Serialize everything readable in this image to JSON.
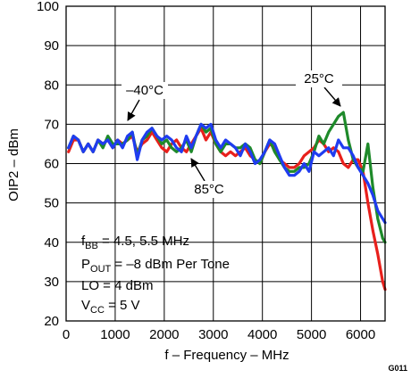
{
  "chart_data": {
    "type": "line",
    "xlabel": "f – Frequency – MHz",
    "ylabel": "OIP2 – dBm",
    "xlim": [
      0,
      6500
    ],
    "ylim": [
      20,
      100
    ],
    "xticks": [
      0,
      1000,
      2000,
      3000,
      4000,
      5000,
      6000
    ],
    "yticks": [
      20,
      30,
      40,
      50,
      60,
      70,
      80,
      90,
      100
    ],
    "grid": true,
    "figure_id": "G011",
    "annotations": [
      {
        "base": "f",
        "sub": "BB",
        "rest": " = 4.5, 5.5 MHz"
      },
      {
        "base": "P",
        "sub": "OUT",
        "rest": " = –8 dBm Per Tone"
      },
      {
        "base": "LO = 4 dBm",
        "sub": "",
        "rest": ""
      },
      {
        "base": "V",
        "sub": "CC",
        "rest": " = 5 V"
      }
    ],
    "series": [
      {
        "name": "–40°C",
        "color": "#e8201c",
        "x": [
          50,
          150,
          250,
          350,
          450,
          550,
          650,
          750,
          850,
          950,
          1050,
          1150,
          1250,
          1350,
          1450,
          1550,
          1650,
          1750,
          1850,
          1950,
          2050,
          2150,
          2250,
          2350,
          2450,
          2550,
          2650,
          2750,
          2850,
          2950,
          3050,
          3150,
          3250,
          3350,
          3450,
          3550,
          3650,
          3750,
          3850,
          3950,
          4050,
          4150,
          4250,
          4350,
          4450,
          4550,
          4650,
          4750,
          4850,
          4950,
          5050,
          5150,
          5250,
          5350,
          5450,
          5550,
          5650,
          5750,
          5850,
          5950,
          6050,
          6150,
          6250,
          6350,
          6450,
          6500
        ],
        "y": [
          63,
          66,
          66,
          63,
          65,
          63,
          66,
          65,
          66,
          64,
          66,
          65,
          66,
          67,
          63,
          65,
          66,
          68,
          66,
          64,
          63,
          65,
          66,
          64,
          63,
          65,
          67,
          69,
          66,
          68,
          65,
          63,
          62,
          63,
          62,
          63,
          64,
          62,
          61,
          60,
          63,
          65,
          64,
          61,
          60,
          59,
          59,
          60,
          62,
          63,
          64,
          66,
          65,
          63,
          64,
          63,
          60,
          59,
          61,
          61,
          58,
          50,
          43,
          37,
          30,
          28
        ]
      },
      {
        "name": "25°C",
        "color": "#1e8a2a",
        "x": [
          50,
          150,
          250,
          350,
          450,
          550,
          650,
          750,
          850,
          950,
          1050,
          1150,
          1250,
          1350,
          1450,
          1550,
          1650,
          1750,
          1850,
          1950,
          2050,
          2150,
          2250,
          2350,
          2450,
          2550,
          2650,
          2750,
          2850,
          2950,
          3050,
          3150,
          3250,
          3350,
          3450,
          3550,
          3650,
          3750,
          3850,
          3950,
          4050,
          4150,
          4250,
          4350,
          4450,
          4550,
          4650,
          4750,
          4850,
          4950,
          5050,
          5150,
          5250,
          5350,
          5450,
          5550,
          5650,
          5750,
          5850,
          5950,
          6050,
          6150,
          6250,
          6350,
          6450,
          6500
        ],
        "y": [
          64,
          67,
          66,
          63,
          65,
          63,
          66,
          64,
          67,
          65,
          65,
          65,
          66,
          68,
          62,
          66,
          67,
          69,
          67,
          65,
          66,
          64,
          63,
          64,
          66,
          63,
          67,
          70,
          68,
          69,
          65,
          63,
          65,
          65,
          64,
          64,
          65,
          64,
          61,
          60,
          63,
          66,
          63,
          61,
          59,
          58,
          58,
          59,
          59,
          60,
          63,
          67,
          65,
          68,
          70,
          72,
          73,
          66,
          61,
          59,
          58,
          65,
          54,
          46,
          41,
          40
        ]
      },
      {
        "name": "85°C",
        "color": "#1f3cf0",
        "x": [
          50,
          150,
          250,
          350,
          450,
          550,
          650,
          750,
          850,
          950,
          1050,
          1150,
          1250,
          1350,
          1450,
          1550,
          1650,
          1750,
          1850,
          1950,
          2050,
          2150,
          2250,
          2350,
          2450,
          2550,
          2650,
          2750,
          2850,
          2950,
          3050,
          3150,
          3250,
          3350,
          3450,
          3550,
          3650,
          3750,
          3850,
          3950,
          4050,
          4150,
          4250,
          4350,
          4450,
          4550,
          4650,
          4750,
          4850,
          4950,
          5050,
          5150,
          5250,
          5350,
          5450,
          5550,
          5650,
          5750,
          5850,
          5950,
          6050,
          6150,
          6250,
          6350,
          6450,
          6500
        ],
        "y": [
          64,
          67,
          66,
          63,
          65,
          63,
          66,
          65,
          66,
          64,
          66,
          64,
          67,
          68,
          61,
          66,
          68,
          69,
          67,
          66,
          67,
          66,
          64,
          63,
          67,
          64,
          67,
          70,
          69,
          70,
          66,
          64,
          66,
          65,
          64,
          62,
          65,
          63,
          60,
          61,
          63,
          66,
          65,
          62,
          59,
          57,
          57,
          58,
          60,
          58,
          63,
          62,
          63,
          64,
          62,
          66,
          64,
          64,
          62,
          59,
          57,
          55,
          52,
          48,
          46,
          45
        ]
      }
    ],
    "series_labels": [
      {
        "text": "–40°C",
        "target_x": 1320,
        "target_y": 68.5
      },
      {
        "text": "25°C",
        "target_x": 5600,
        "target_y": 74
      },
      {
        "text": "85°C",
        "target_x": 3300,
        "target_y": 62
      }
    ]
  }
}
